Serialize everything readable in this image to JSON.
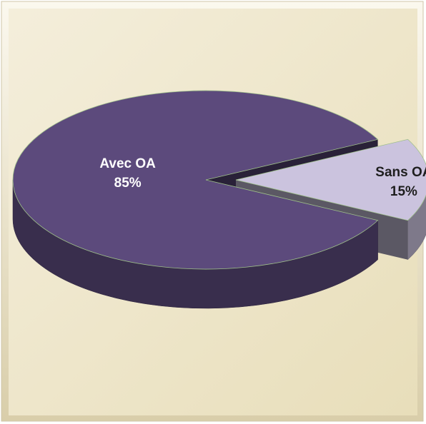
{
  "chart_data": {
    "type": "pie",
    "categories": [
      "Avec OA",
      "Sans OA"
    ],
    "values": [
      85,
      15
    ],
    "value_labels": [
      "85%",
      "15%"
    ],
    "colors": [
      "#5c4a7c",
      "#cbc3de"
    ]
  }
}
